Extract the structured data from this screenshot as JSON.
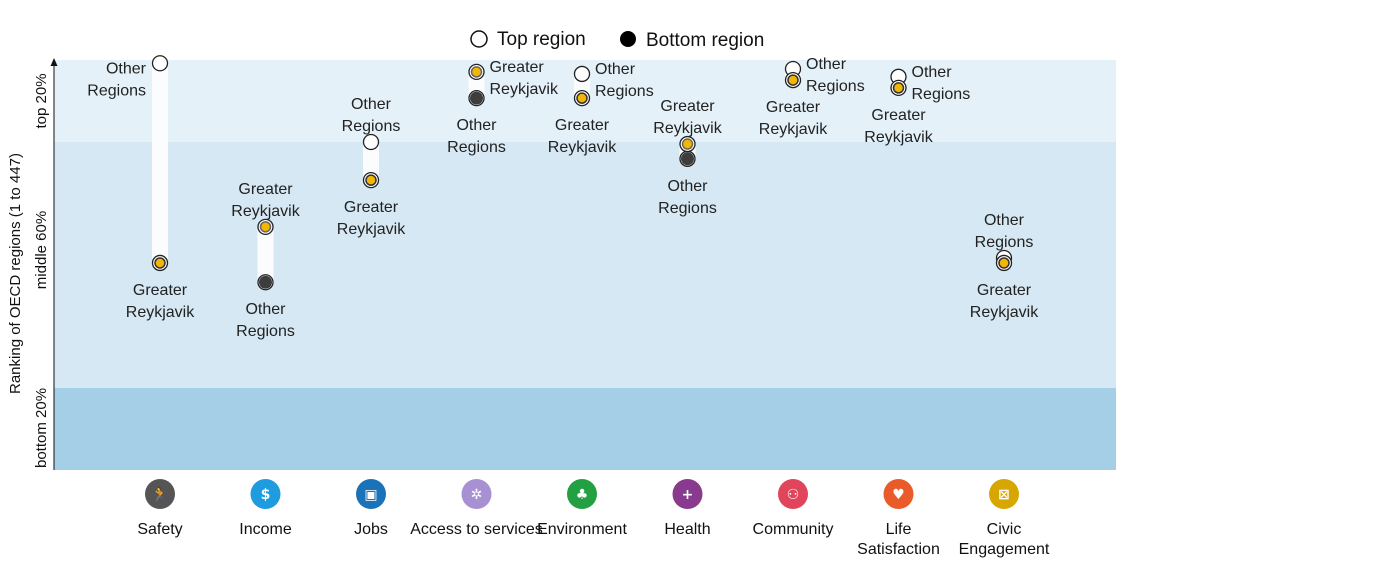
{
  "chart_data": {
    "type": "range-dot",
    "title": "",
    "legend": [
      {
        "key": "top",
        "label": "Top region",
        "color": "#ffffff"
      },
      {
        "key": "bottom",
        "label": "Bottom region",
        "color": "#000000"
      }
    ],
    "y_axis": {
      "label": "Ranking of OECD regions (1 to 447)",
      "range": [
        1,
        447
      ],
      "inverted": true,
      "bands": [
        {
          "label": "top 20%",
          "from": 0,
          "to": 20,
          "color": "#e5f1f9"
        },
        {
          "label": "middle 60%",
          "from": 20,
          "to": 80,
          "color": "#d5e8f3"
        },
        {
          "label": "bottom 20%",
          "from": 80,
          "to": 100,
          "color": "#a5cfe7"
        }
      ]
    },
    "series": [
      {
        "name": "Greater Reykjavik",
        "color": "#f2b705"
      },
      {
        "name": "Other Regions",
        "color": "#3d3d3d"
      }
    ],
    "categories": [
      {
        "name": "Safety",
        "icon": "running-person-icon",
        "icon_color": "#555555",
        "glyph": "🏃",
        "gr_pct": 49.5,
        "or_pct": 0.8,
        "gr_label": "Greater Reykjavik",
        "or_label": "Other Regions",
        "gr_label_pos": "below",
        "or_label_pos": "left"
      },
      {
        "name": "Income",
        "icon": "money-icon",
        "icon_color": "#1f9be0",
        "glyph": "$",
        "gr_pct": 40.7,
        "or_pct": 54.2,
        "gr_label": "Greater Reykjavik",
        "or_label": "Other Regions",
        "gr_label_pos": "above",
        "or_label_pos": "below"
      },
      {
        "name": "Jobs",
        "icon": "briefcase-icon",
        "icon_color": "#1a72b8",
        "glyph": "▣",
        "gr_pct": 29.3,
        "or_pct": 20.0,
        "gr_label": "Greater Reykjavik",
        "or_label": "Other Regions",
        "gr_label_pos": "below",
        "or_label_pos": "above"
      },
      {
        "name": "Access to services",
        "icon": "network-icon",
        "icon_color": "#a891d3",
        "glyph": "✲",
        "gr_pct": 2.9,
        "or_pct": 9.3,
        "gr_label": "Greater Reykjavik",
        "or_label": "Other Regions",
        "gr_label_pos": "right",
        "or_label_pos": "below"
      },
      {
        "name": "Environment",
        "icon": "tree-icon",
        "icon_color": "#22a042",
        "glyph": "♣",
        "gr_pct": 9.3,
        "or_pct": 3.4,
        "gr_label": "Greater Reykjavik",
        "or_label": "Other Regions",
        "gr_label_pos": "below",
        "or_label_pos": "right"
      },
      {
        "name": "Health",
        "icon": "health-cross-icon",
        "icon_color": "#8a3a8e",
        "glyph": "+",
        "gr_pct": 20.5,
        "or_pct": 24.1,
        "gr_label": "Greater Reykjavik",
        "or_label": "Other Regions",
        "gr_label_pos": "above",
        "or_label_pos": "below"
      },
      {
        "name": "Community",
        "icon": "community-icon",
        "icon_color": "#e0455c",
        "glyph": "⚇",
        "gr_pct": 4.9,
        "or_pct": 2.2,
        "gr_label": "Greater Reykjavik",
        "or_label": "Other Regions",
        "gr_label_pos": "below",
        "or_label_pos": "right"
      },
      {
        "name": "Life Satisfaction",
        "icon": "heart-icon",
        "icon_color": "#ea5b2a",
        "glyph": "♥",
        "gr_pct": 6.8,
        "or_pct": 4.1,
        "gr_label": "Greater Reykjavik",
        "or_label": "Other Regions",
        "gr_label_pos": "below",
        "or_label_pos": "right"
      },
      {
        "name": "Civic Engagement",
        "icon": "ballot-box-icon",
        "icon_color": "#d8a600",
        "glyph": "⊠",
        "gr_pct": 49.5,
        "or_pct": 48.3,
        "gr_label": "Greater Reykjavik",
        "or_label": "Other Regions",
        "gr_label_pos": "below",
        "or_label_pos": "above"
      }
    ]
  }
}
